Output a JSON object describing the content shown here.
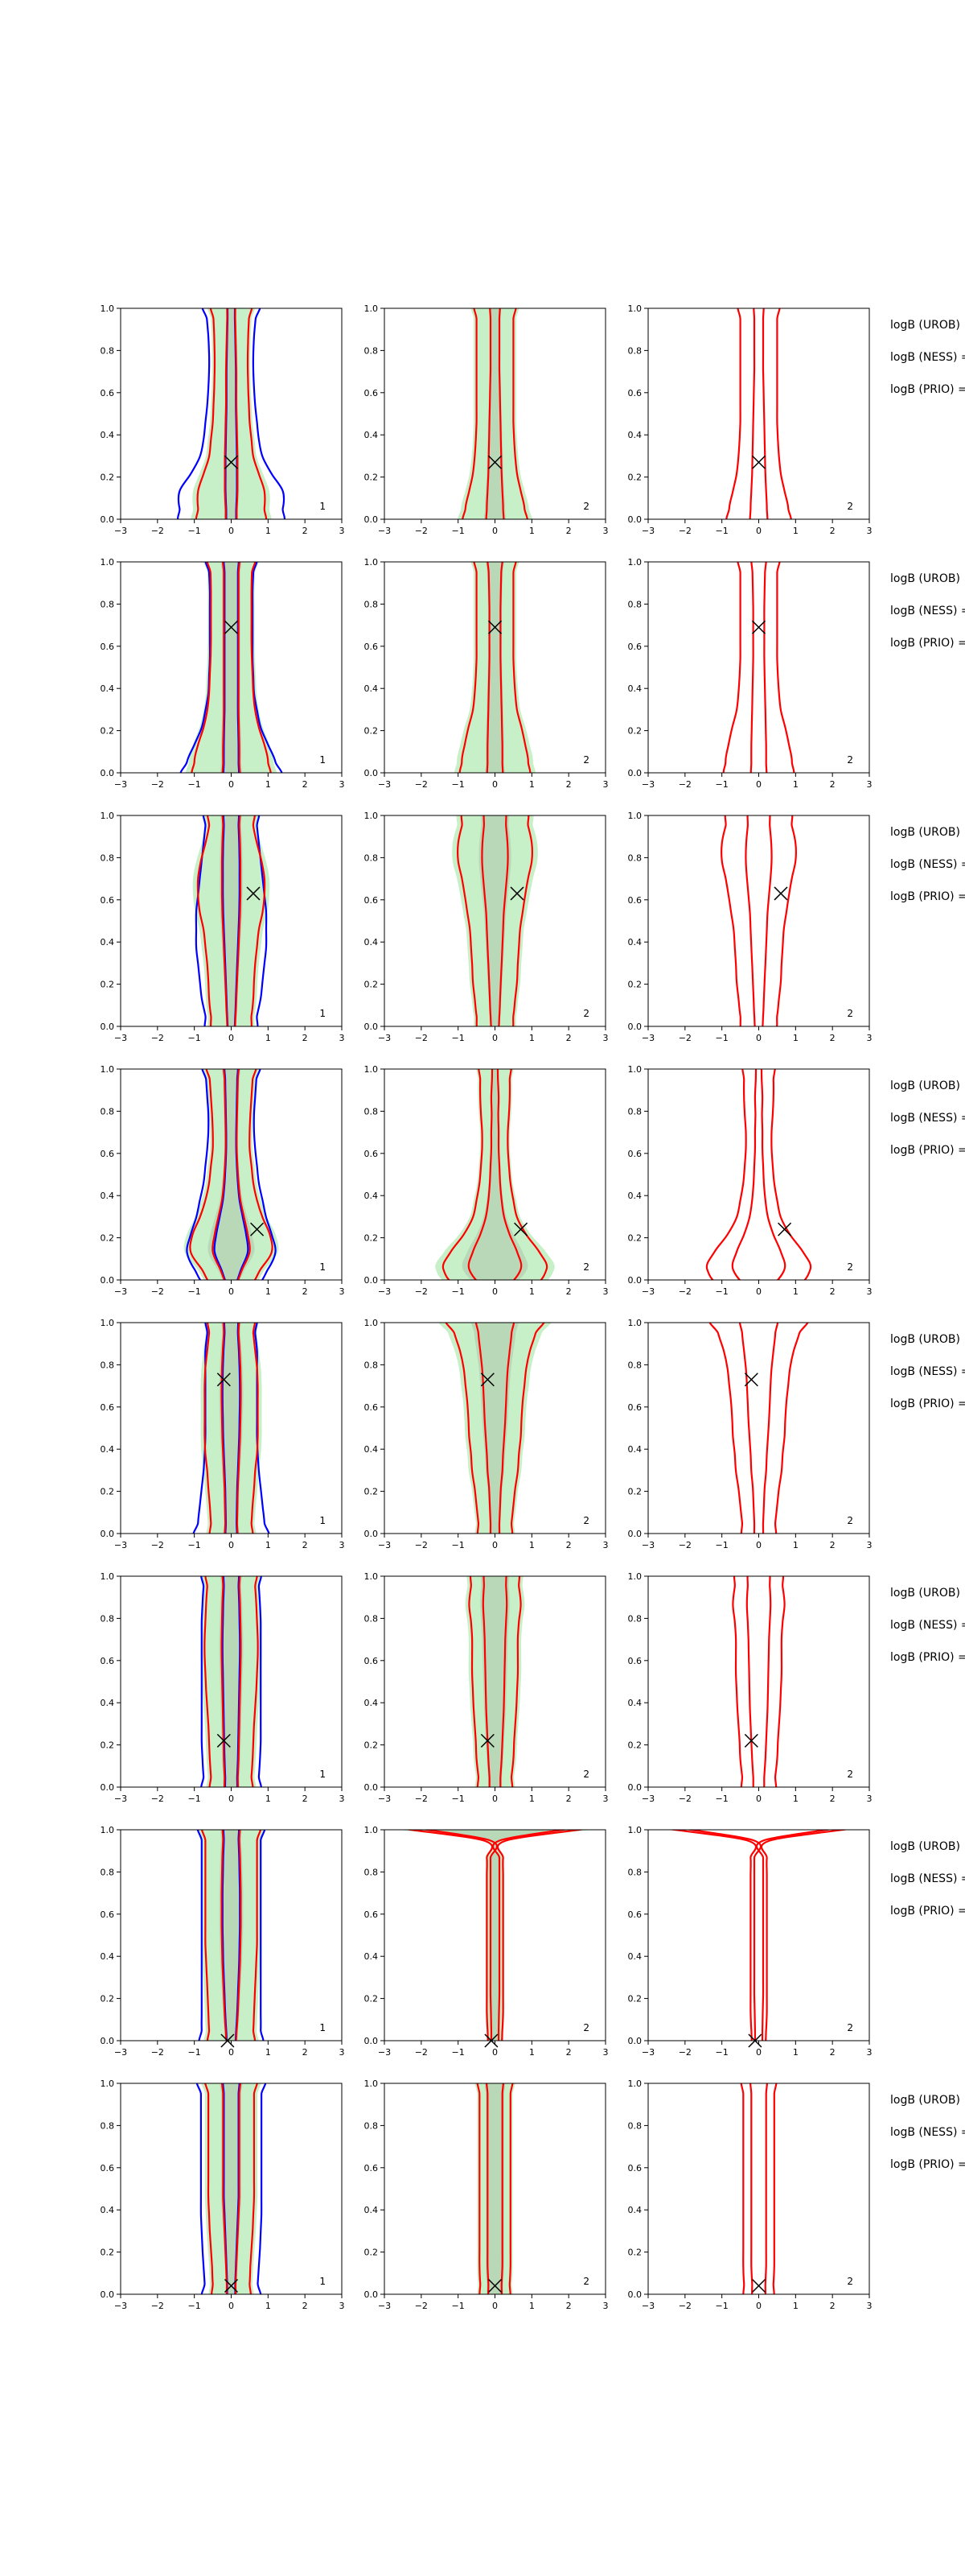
{
  "figure": {
    "xticks": [
      -3,
      -2,
      -1,
      0,
      1,
      2,
      3
    ],
    "yticks": [
      0.0,
      0.2,
      0.4,
      0.6,
      0.8,
      1.0
    ],
    "xlim": [
      -3,
      3
    ],
    "ylim": [
      0,
      1
    ],
    "grid": false,
    "colors": {
      "fill_light": "#c8f0c8",
      "fill_dark": "#b8d8b8",
      "contour_red": "#ff0000",
      "contour_blue": "#0000ff",
      "marker": "#000000",
      "axis": "#000000"
    },
    "side_labels": [
      "logB (UROB)",
      "logB (NESS) =",
      "logB (PRIO) ="
    ]
  },
  "chart_data": [
    {
      "type": "contour",
      "row": 1,
      "marker": [
        0.0,
        0.27
      ],
      "panels": [
        {
          "label": "1",
          "inner": [
            0.12,
            0.15,
            0.17,
            0.17,
            0.17,
            0.16,
            0.15,
            0.14,
            0.14,
            0.14,
            0.13,
            0.12,
            0.11,
            0.09
          ],
          "outer": [
            0.8,
            0.9,
            0.9,
            0.75,
            0.6,
            0.55,
            0.5,
            0.48,
            0.46,
            0.45,
            0.45,
            0.46,
            0.48,
            0.5
          ],
          "blue": [
            1.2,
            1.4,
            1.4,
            1.1,
            0.85,
            0.75,
            0.7,
            0.65,
            0.62,
            0.6,
            0.6,
            0.62,
            0.66,
            0.7
          ],
          "fill": true
        },
        {
          "label": "2",
          "inner": [
            0.2,
            0.22,
            0.2,
            0.18,
            0.17,
            0.16,
            0.15,
            0.14,
            0.13,
            0.12,
            0.12,
            0.12,
            0.12,
            0.12
          ],
          "outer": [
            0.75,
            0.8,
            0.7,
            0.6,
            0.55,
            0.52,
            0.5,
            0.5,
            0.5,
            0.5,
            0.5,
            0.5,
            0.5,
            0.5
          ],
          "fill": true
        },
        {
          "label": "2",
          "inner": [
            0.2,
            0.22,
            0.2,
            0.18,
            0.17,
            0.16,
            0.15,
            0.14,
            0.13,
            0.12,
            0.12,
            0.12,
            0.12,
            0.12
          ],
          "outer": [
            0.75,
            0.8,
            0.7,
            0.6,
            0.55,
            0.52,
            0.5,
            0.5,
            0.5,
            0.5,
            0.5,
            0.5,
            0.5,
            0.5
          ],
          "fill": false
        }
      ]
    },
    {
      "type": "contour",
      "row": 2,
      "marker": [
        0.0,
        0.69
      ],
      "panels": [
        {
          "label": "1",
          "inner": [
            0.2,
            0.22,
            0.22,
            0.21,
            0.2,
            0.2,
            0.2,
            0.2,
            0.2,
            0.2,
            0.2,
            0.2,
            0.2,
            0.2
          ],
          "outer": [
            0.9,
            1.0,
            0.9,
            0.75,
            0.65,
            0.6,
            0.58,
            0.56,
            0.55,
            0.55,
            0.55,
            0.55,
            0.56,
            0.58
          ],
          "blue": [
            1.2,
            1.2,
            1.0,
            0.8,
            0.7,
            0.62,
            0.6,
            0.58,
            0.58,
            0.58,
            0.58,
            0.58,
            0.6,
            0.62
          ],
          "fill": true
        },
        {
          "label": "2",
          "inner": [
            0.18,
            0.2,
            0.2,
            0.19,
            0.18,
            0.17,
            0.16,
            0.15,
            0.15,
            0.15,
            0.15,
            0.16,
            0.17,
            0.18
          ],
          "outer": [
            0.8,
            0.9,
            0.82,
            0.72,
            0.6,
            0.55,
            0.52,
            0.5,
            0.5,
            0.5,
            0.5,
            0.5,
            0.5,
            0.5
          ],
          "fill": true
        },
        {
          "label": "2",
          "inner": [
            0.18,
            0.2,
            0.2,
            0.19,
            0.18,
            0.17,
            0.16,
            0.15,
            0.15,
            0.15,
            0.15,
            0.16,
            0.17,
            0.18
          ],
          "outer": [
            0.8,
            0.9,
            0.82,
            0.72,
            0.6,
            0.55,
            0.52,
            0.5,
            0.5,
            0.5,
            0.5,
            0.5,
            0.5,
            0.5
          ],
          "fill": false
        }
      ]
    },
    {
      "type": "contour",
      "row": 3,
      "marker": [
        0.6,
        0.63
      ],
      "panels": [
        {
          "label": "1",
          "inner": [
            0.08,
            0.12,
            0.14,
            0.16,
            0.18,
            0.2,
            0.22,
            0.24,
            0.25,
            0.25,
            0.25,
            0.24,
            0.22,
            0.2
          ],
          "outer": [
            0.45,
            0.55,
            0.6,
            0.62,
            0.65,
            0.7,
            0.75,
            0.85,
            0.9,
            0.9,
            0.82,
            0.7,
            0.6,
            0.55
          ],
          "blue": [
            0.6,
            0.7,
            0.8,
            0.85,
            0.9,
            0.95,
            0.95,
            0.95,
            0.9,
            0.85,
            0.8,
            0.75,
            0.7,
            0.65
          ],
          "fill": true
        },
        {
          "label": "2",
          "inner": [
            0.08,
            0.12,
            0.14,
            0.16,
            0.18,
            0.2,
            0.22,
            0.24,
            0.28,
            0.32,
            0.35,
            0.34,
            0.3,
            0.25
          ],
          "outer": [
            0.4,
            0.5,
            0.55,
            0.6,
            0.62,
            0.65,
            0.68,
            0.75,
            0.82,
            0.9,
            1.0,
            1.0,
            0.9,
            0.75
          ],
          "fill": true
        },
        {
          "label": "2",
          "inner": [
            0.08,
            0.12,
            0.14,
            0.16,
            0.18,
            0.2,
            0.22,
            0.24,
            0.28,
            0.32,
            0.35,
            0.34,
            0.3,
            0.25
          ],
          "outer": [
            0.4,
            0.5,
            0.55,
            0.6,
            0.62,
            0.65,
            0.68,
            0.75,
            0.82,
            0.9,
            1.0,
            1.0,
            0.9,
            0.75
          ],
          "fill": false
        }
      ]
    },
    {
      "type": "contour",
      "row": 4,
      "marker": [
        0.7,
        0.24
      ],
      "panels": [
        {
          "label": "1",
          "inner": [
            0.1,
            0.3,
            0.5,
            0.45,
            0.35,
            0.25,
            0.2,
            0.17,
            0.15,
            0.15,
            0.16,
            0.17,
            0.18,
            0.18
          ],
          "outer": [
            0.45,
            0.8,
            1.1,
            1.05,
            0.85,
            0.7,
            0.6,
            0.55,
            0.5,
            0.5,
            0.52,
            0.55,
            0.58,
            0.6
          ],
          "blue": [
            0.6,
            1.0,
            1.2,
            1.1,
            0.95,
            0.85,
            0.75,
            0.7,
            0.65,
            0.62,
            0.62,
            0.65,
            0.68,
            0.7
          ],
          "fill": true
        },
        {
          "label": "2",
          "inner": [
            0.3,
            0.7,
            0.6,
            0.4,
            0.25,
            0.18,
            0.14,
            0.12,
            0.1,
            0.1,
            0.09,
            0.1,
            0.08,
            0.06
          ],
          "outer": [
            0.9,
            1.4,
            1.2,
            0.85,
            0.6,
            0.5,
            0.42,
            0.38,
            0.35,
            0.35,
            0.38,
            0.4,
            0.4,
            0.38
          ],
          "fill": true
        },
        {
          "label": "2",
          "inner": [
            0.3,
            0.7,
            0.6,
            0.4,
            0.25,
            0.18,
            0.14,
            0.12,
            0.1,
            0.1,
            0.09,
            0.1,
            0.08,
            0.06
          ],
          "outer": [
            0.9,
            1.4,
            1.2,
            0.85,
            0.6,
            0.5,
            0.42,
            0.38,
            0.35,
            0.35,
            0.38,
            0.4,
            0.4,
            0.38
          ],
          "fill": false
        }
      ]
    },
    {
      "type": "contour",
      "row": 5,
      "marker": [
        -0.2,
        0.73
      ],
      "panels": [
        {
          "label": "1",
          "inner": [
            0.15,
            0.16,
            0.17,
            0.18,
            0.2,
            0.22,
            0.24,
            0.25,
            0.26,
            0.26,
            0.25,
            0.23,
            0.2,
            0.18
          ],
          "outer": [
            0.5,
            0.55,
            0.58,
            0.62,
            0.65,
            0.7,
            0.72,
            0.72,
            0.72,
            0.72,
            0.7,
            0.65,
            0.6,
            0.55
          ],
          "blue": [
            0.9,
            0.9,
            0.85,
            0.8,
            0.75,
            0.72,
            0.7,
            0.7,
            0.7,
            0.7,
            0.7,
            0.7,
            0.65,
            0.6
          ],
          "fill": true
        },
        {
          "label": "2",
          "inner": [
            0.1,
            0.12,
            0.14,
            0.16,
            0.2,
            0.22,
            0.25,
            0.28,
            0.3,
            0.32,
            0.35,
            0.4,
            0.45,
            0.45
          ],
          "outer": [
            0.4,
            0.45,
            0.5,
            0.55,
            0.62,
            0.65,
            0.7,
            0.72,
            0.75,
            0.8,
            0.85,
            0.95,
            1.1,
            1.2
          ],
          "fill": true
        },
        {
          "label": "2",
          "inner": [
            0.1,
            0.12,
            0.14,
            0.16,
            0.2,
            0.22,
            0.25,
            0.28,
            0.3,
            0.32,
            0.35,
            0.4,
            0.45,
            0.45
          ],
          "outer": [
            0.4,
            0.45,
            0.5,
            0.55,
            0.62,
            0.65,
            0.7,
            0.72,
            0.75,
            0.8,
            0.85,
            0.95,
            1.1,
            1.2
          ],
          "fill": false
        }
      ]
    },
    {
      "type": "contour",
      "row": 6,
      "marker": [
        -0.2,
        0.22
      ],
      "panels": [
        {
          "label": "1",
          "inner": [
            0.15,
            0.18,
            0.2,
            0.21,
            0.22,
            0.23,
            0.24,
            0.25,
            0.26,
            0.26,
            0.25,
            0.24,
            0.22,
            0.2
          ],
          "outer": [
            0.5,
            0.55,
            0.58,
            0.6,
            0.62,
            0.65,
            0.68,
            0.7,
            0.72,
            0.72,
            0.7,
            0.68,
            0.65,
            0.6
          ],
          "blue": [
            0.7,
            0.75,
            0.78,
            0.8,
            0.8,
            0.8,
            0.8,
            0.8,
            0.8,
            0.8,
            0.8,
            0.78,
            0.75,
            0.7
          ],
          "fill": true
        },
        {
          "label": "2",
          "inner": [
            0.12,
            0.15,
            0.18,
            0.2,
            0.22,
            0.24,
            0.25,
            0.26,
            0.27,
            0.28,
            0.3,
            0.32,
            0.3,
            0.25
          ],
          "outer": [
            0.4,
            0.45,
            0.5,
            0.52,
            0.55,
            0.58,
            0.6,
            0.62,
            0.62,
            0.62,
            0.65,
            0.7,
            0.65,
            0.55
          ],
          "fill": true
        },
        {
          "label": "2",
          "inner": [
            0.12,
            0.15,
            0.18,
            0.2,
            0.22,
            0.24,
            0.25,
            0.26,
            0.27,
            0.28,
            0.3,
            0.32,
            0.3,
            0.25
          ],
          "outer": [
            0.4,
            0.45,
            0.5,
            0.52,
            0.55,
            0.58,
            0.6,
            0.62,
            0.62,
            0.62,
            0.65,
            0.7,
            0.65,
            0.55
          ],
          "fill": false
        }
      ]
    },
    {
      "type": "contour",
      "row": 7,
      "marker": [
        -0.1,
        0.0
      ],
      "panels": [
        {
          "label": "1",
          "inner": [
            0.1,
            0.15,
            0.18,
            0.2,
            0.22,
            0.24,
            0.25,
            0.26,
            0.26,
            0.26,
            0.25,
            0.24,
            0.22,
            0.2
          ],
          "outer": [
            0.55,
            0.6,
            0.62,
            0.64,
            0.66,
            0.68,
            0.7,
            0.7,
            0.7,
            0.7,
            0.7,
            0.7,
            0.7,
            0.7
          ],
          "blue": [
            0.75,
            0.8,
            0.8,
            0.8,
            0.8,
            0.8,
            0.8,
            0.8,
            0.8,
            0.8,
            0.8,
            0.8,
            0.8,
            0.8
          ],
          "fill": true
        },
        {
          "label": "2",
          "inner": [
            0.08,
            0.1,
            0.11,
            0.12,
            0.12,
            0.12,
            0.12,
            0.12,
            0.12,
            0.12,
            0.12,
            0.12,
            0.12,
            2.5
          ],
          "outer": [
            0.15,
            0.2,
            0.22,
            0.22,
            0.22,
            0.22,
            0.22,
            0.22,
            0.22,
            0.22,
            0.22,
            0.22,
            0.3,
            3.0
          ],
          "fill": true
        },
        {
          "label": "2",
          "inner": [
            0.08,
            0.1,
            0.11,
            0.12,
            0.12,
            0.12,
            0.12,
            0.12,
            0.12,
            0.12,
            0.12,
            0.12,
            0.12,
            2.5
          ],
          "outer": [
            0.15,
            0.2,
            0.22,
            0.22,
            0.22,
            0.22,
            0.22,
            0.22,
            0.22,
            0.22,
            0.22,
            0.22,
            0.3,
            3.0
          ],
          "fill": false
        }
      ]
    },
    {
      "type": "contour",
      "row": 8,
      "marker": [
        0.0,
        0.04
      ],
      "panels": [
        {
          "label": "1",
          "inner": [
            0.1,
            0.12,
            0.14,
            0.16,
            0.18,
            0.2,
            0.22,
            0.22,
            0.22,
            0.22,
            0.22,
            0.22,
            0.22,
            0.22
          ],
          "outer": [
            0.45,
            0.5,
            0.52,
            0.55,
            0.58,
            0.6,
            0.62,
            0.62,
            0.62,
            0.62,
            0.62,
            0.62,
            0.62,
            0.62
          ],
          "blue": [
            0.7,
            0.72,
            0.75,
            0.78,
            0.8,
            0.82,
            0.82,
            0.82,
            0.82,
            0.82,
            0.82,
            0.82,
            0.82,
            0.82
          ],
          "fill": true
        },
        {
          "label": "2",
          "inner": [
            0.15,
            0.18,
            0.2,
            0.2,
            0.2,
            0.2,
            0.2,
            0.2,
            0.2,
            0.2,
            0.2,
            0.2,
            0.2,
            0.2
          ],
          "outer": [
            0.35,
            0.4,
            0.42,
            0.42,
            0.42,
            0.42,
            0.42,
            0.42,
            0.42,
            0.42,
            0.42,
            0.42,
            0.42,
            0.42
          ],
          "fill": true
        },
        {
          "label": "2",
          "inner": [
            0.15,
            0.18,
            0.2,
            0.2,
            0.2,
            0.2,
            0.2,
            0.2,
            0.2,
            0.2,
            0.2,
            0.2,
            0.2,
            0.2
          ],
          "outer": [
            0.35,
            0.4,
            0.42,
            0.42,
            0.42,
            0.42,
            0.42,
            0.42,
            0.42,
            0.42,
            0.42,
            0.42,
            0.42,
            0.42
          ],
          "fill": false
        }
      ]
    }
  ]
}
